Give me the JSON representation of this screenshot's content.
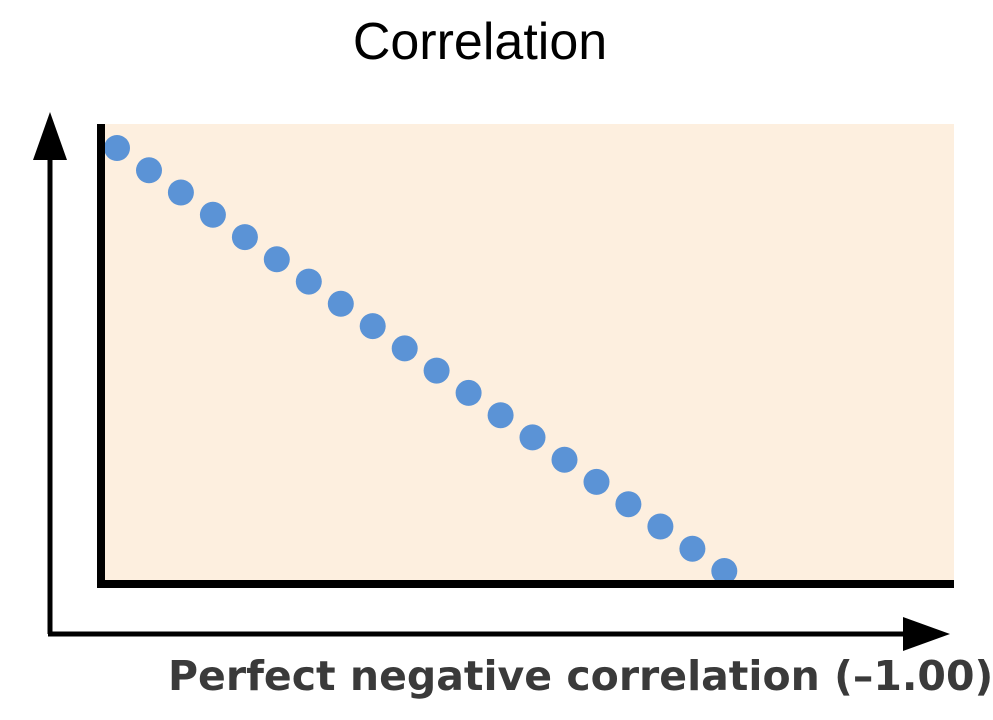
{
  "page": {
    "title": "Correlation"
  },
  "chart_data": {
    "type": "scatter",
    "title": "Correlation",
    "xlabel": "Perfect negative correlation (–1.00)",
    "ylabel": "",
    "correlation": -1.0,
    "grid": false,
    "legend": "none",
    "xlim": [
      0,
      28
    ],
    "ylim": [
      0,
      19
    ],
    "series": [
      {
        "x": [
          0,
          1,
          2,
          3,
          4,
          5,
          6,
          7,
          8,
          9,
          10,
          11,
          12,
          13,
          14,
          15,
          16,
          17,
          18,
          19
        ],
        "y": [
          19,
          18,
          17,
          16,
          15,
          14,
          13,
          12,
          11,
          10,
          9,
          8,
          7,
          6,
          5,
          4,
          3,
          2,
          1,
          0
        ]
      }
    ],
    "colors": {
      "point": "#5b93d6",
      "plot_background": "#fdefdf",
      "axis": "#000000"
    }
  }
}
